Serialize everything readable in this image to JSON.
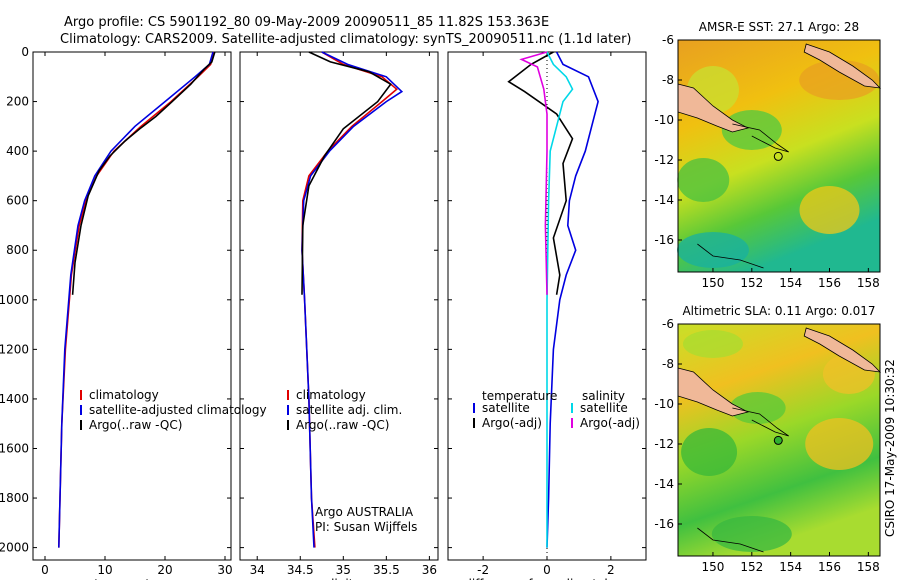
{
  "header": {
    "line1": "Argo profile: CS 5901192_80 09-May-2009 20090511_85 11.82S 153.363E",
    "line2": "Climatology: CARS2009. Satellite-adjusted climatology: synTS_20090511.nc (1.1d later)"
  },
  "chart_data": [
    {
      "type": "line",
      "id": "temperature",
      "xlabel": "temperature",
      "xlim": [
        -2,
        31
      ],
      "xticks": [
        0,
        10,
        20,
        30
      ],
      "ylim": [
        2050,
        0
      ],
      "yticks": [
        0,
        200,
        400,
        600,
        800,
        1000,
        1200,
        1400,
        1600,
        1800,
        2000
      ],
      "legend": [
        "climatology",
        "satellite-adjusted climatology",
        "Argo(..raw -QC)"
      ],
      "series": [
        {
          "name": "climatology",
          "color": "#e00000",
          "x": [
            28.2,
            27.6,
            25.5,
            21.0,
            16.0,
            11.5,
            8.6,
            6.8,
            5.7,
            4.4,
            3.4,
            2.8,
            2.5,
            2.3
          ],
          "y": [
            0,
            50,
            100,
            200,
            300,
            400,
            500,
            600,
            700,
            900,
            1200,
            1500,
            1800,
            2000
          ]
        },
        {
          "name": "satellite-adjusted climatology",
          "color": "#0000e0",
          "x": [
            28.0,
            27.4,
            25.0,
            20.0,
            15.0,
            11.0,
            8.3,
            6.6,
            5.5,
            4.3,
            3.3,
            2.8,
            2.5,
            2.3
          ],
          "y": [
            0,
            50,
            100,
            200,
            300,
            400,
            500,
            600,
            700,
            900,
            1200,
            1500,
            1800,
            2000
          ]
        },
        {
          "name": "Argo(..raw -QC)",
          "color": "#000000",
          "x": [
            28.3,
            27.8,
            26.5,
            24.3,
            21.2,
            18.5,
            15.8,
            13.3,
            10.8,
            9.0,
            7.2,
            6.0,
            5.0,
            4.6
          ],
          "y": [
            0,
            40,
            70,
            130,
            200,
            260,
            310,
            360,
            420,
            480,
            580,
            700,
            850,
            980
          ]
        }
      ]
    },
    {
      "type": "line",
      "id": "salinity",
      "xlabel": "salinity",
      "xlim": [
        33.8,
        36.1
      ],
      "xticks": [
        34,
        34.5,
        35,
        35.5,
        36
      ],
      "ylim": [
        2050,
        0
      ],
      "legend": [
        "climatology",
        "satellite adj. clim.",
        "Argo(..raw -QC)"
      ],
      "annotation": [
        "Argo AUSTRALIA",
        "PI: Susan Wijffels"
      ],
      "series": [
        {
          "name": "climatology",
          "color": "#e00000",
          "x": [
            34.75,
            35.0,
            35.45,
            35.62,
            35.45,
            35.1,
            34.82,
            34.6,
            34.53,
            34.52,
            34.55,
            34.6,
            34.63,
            34.67
          ],
          "y": [
            0,
            50,
            100,
            150,
            200,
            300,
            400,
            500,
            600,
            800,
            1000,
            1400,
            1800,
            2000
          ]
        },
        {
          "name": "satellite adj. clim.",
          "color": "#0000e0",
          "x": [
            34.75,
            35.05,
            35.5,
            35.68,
            35.5,
            35.12,
            34.84,
            34.62,
            34.54,
            34.52,
            34.55,
            34.6,
            34.63,
            34.66
          ],
          "y": [
            0,
            50,
            100,
            160,
            200,
            300,
            400,
            500,
            600,
            800,
            1000,
            1400,
            1800,
            2000
          ]
        },
        {
          "name": "Argo(..raw -QC)",
          "color": "#000000",
          "x": [
            34.6,
            34.85,
            35.3,
            35.55,
            35.4,
            35.0,
            34.78,
            34.6,
            34.53,
            34.52
          ],
          "y": [
            0,
            40,
            80,
            130,
            200,
            310,
            420,
            540,
            700,
            980
          ]
        }
      ]
    },
    {
      "type": "line",
      "id": "difference",
      "xlabel": "difference from climatology",
      "xlim": [
        -3.1,
        3.1
      ],
      "xticks": [
        -2,
        0,
        2
      ],
      "ylim": [
        2050,
        0
      ],
      "legend_left_title": "temperature",
      "legend_right_title": "salinity",
      "legend": [
        "satellite",
        "Argo(-adj)",
        "satellite",
        "Argo(-adj)"
      ],
      "series": [
        {
          "name": "temperature satellite",
          "color": "#0000e0",
          "x": [
            0.3,
            0.5,
            1.3,
            1.6,
            1.4,
            1.2,
            0.9,
            0.7,
            0.65,
            0.9,
            0.6,
            0.4,
            0.2,
            0.1,
            0.05,
            0.0
          ],
          "y": [
            0,
            50,
            100,
            200,
            300,
            400,
            500,
            600,
            700,
            800,
            900,
            1000,
            1200,
            1500,
            1800,
            2000
          ]
        },
        {
          "name": "temperature Argo(-adj)",
          "color": "#000000",
          "x": [
            0.2,
            -0.5,
            -1.2,
            -0.7,
            0.3,
            0.8,
            0.5,
            0.6,
            0.2,
            0.4,
            0.3
          ],
          "y": [
            0,
            50,
            120,
            160,
            250,
            350,
            450,
            600,
            750,
            900,
            980
          ]
        },
        {
          "name": "salinity satellite",
          "color": "#00d8e8",
          "x": [
            0.0,
            0.2,
            0.6,
            0.8,
            0.5,
            0.3,
            0.1,
            0.05,
            0.0,
            0.0
          ],
          "y": [
            0,
            50,
            100,
            150,
            200,
            300,
            400,
            600,
            1000,
            2000
          ]
        },
        {
          "name": "salinity Argo(-adj)",
          "color": "#e000e0",
          "x": [
            0.0,
            -0.8,
            -0.3,
            -0.1,
            0.0,
            0.0,
            -0.05,
            0.0
          ],
          "y": [
            0,
            30,
            60,
            150,
            250,
            400,
            700,
            980
          ]
        }
      ]
    },
    {
      "type": "heatmap",
      "id": "sst-map",
      "title": "AMSR-E SST: 27.1 Argo: 28",
      "xticks": [
        150,
        152,
        154,
        156,
        158
      ],
      "yticks": [
        -6,
        -8,
        -10,
        -12,
        -14,
        -16
      ],
      "xlim": [
        148.2,
        158.6
      ],
      "ylim": [
        -17.6,
        -6.0
      ]
    },
    {
      "type": "heatmap",
      "id": "sla-map",
      "title": "Altimetric SLA: 0.11 Argo: 0.017",
      "xticks": [
        150,
        152,
        154,
        156,
        158
      ],
      "yticks": [
        -6,
        -8,
        -10,
        -12,
        -14,
        -16
      ],
      "xlim": [
        148.2,
        158.6
      ],
      "ylim": [
        -17.6,
        -6.0
      ]
    }
  ],
  "footer": {
    "timestamp": "CSIRO 17-May-2009 10:30:32"
  }
}
